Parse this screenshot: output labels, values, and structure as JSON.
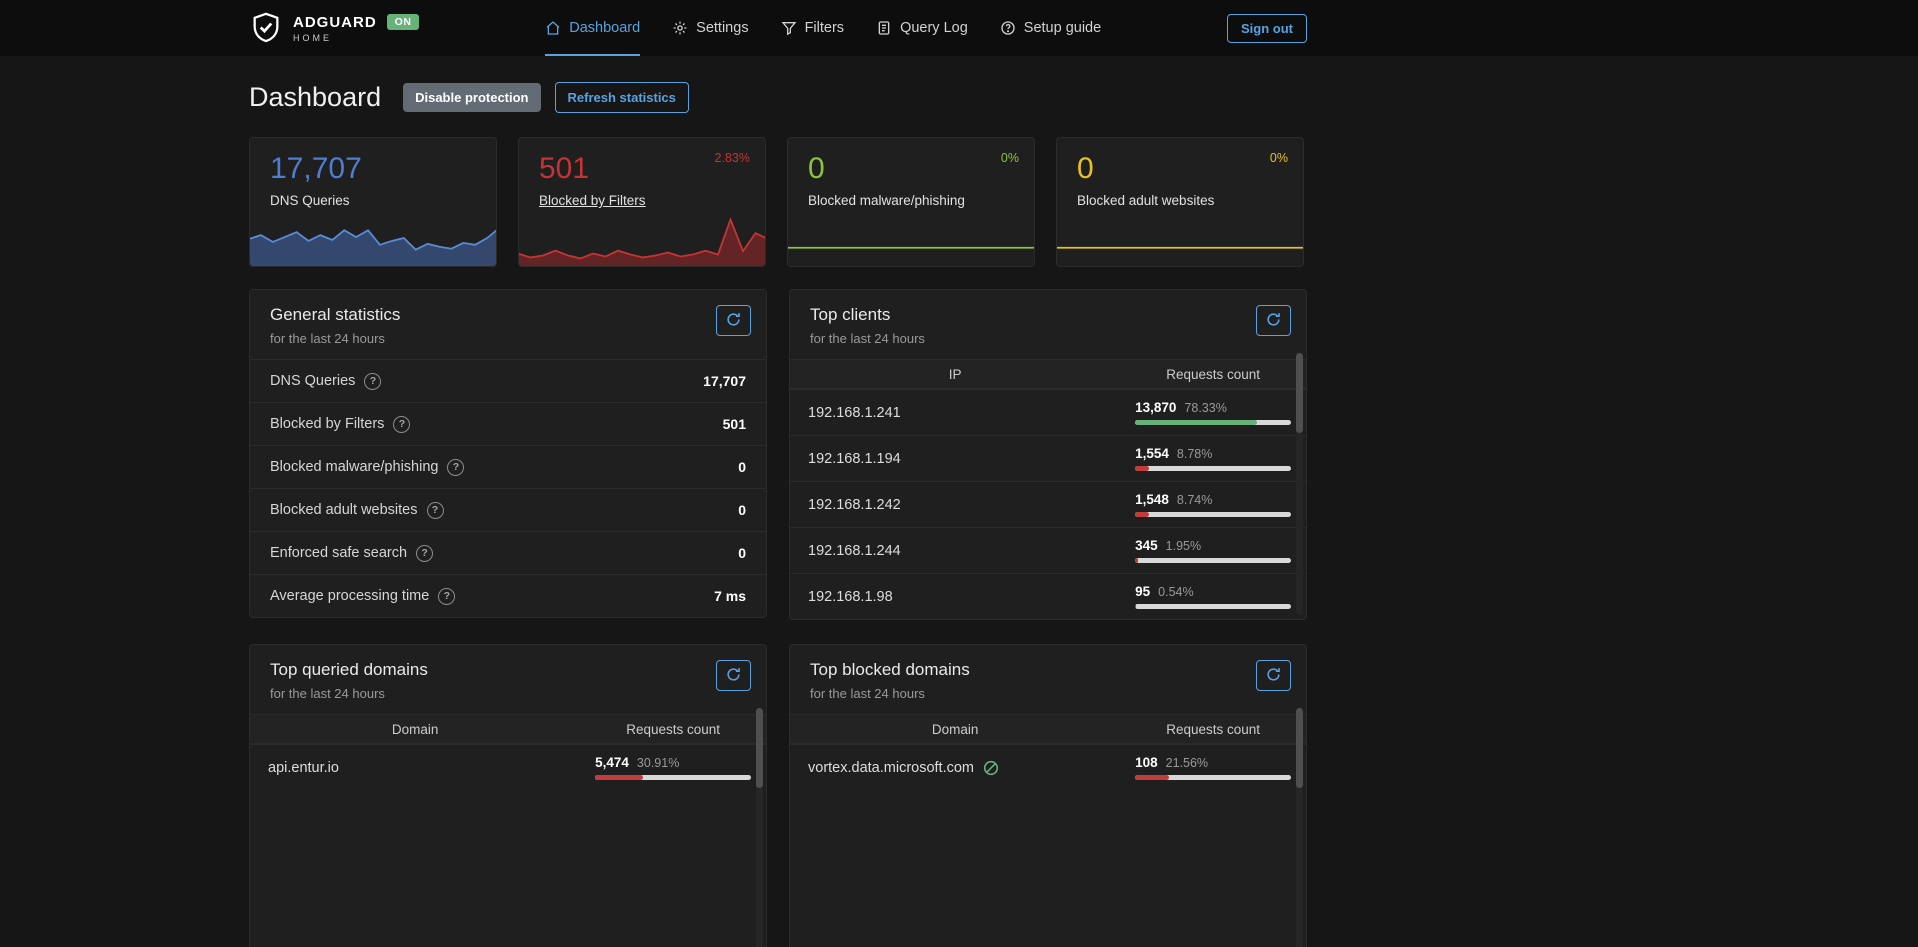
{
  "ui": {
    "question_mark": "?"
  },
  "navbar": {
    "brand": {
      "title": "ADGUARD",
      "subtitle": "HOME",
      "status_badge": "ON"
    },
    "items": [
      {
        "label": "Dashboard"
      },
      {
        "label": "Settings"
      },
      {
        "label": "Filters"
      },
      {
        "label": "Query Log"
      },
      {
        "label": "Setup guide"
      }
    ],
    "signout_label": "Sign out"
  },
  "page": {
    "title": "Dashboard",
    "disable_protection_label": "Disable protection",
    "refresh_statistics_label": "Refresh statistics"
  },
  "stat_cards": [
    {
      "value": "17,707",
      "label": "DNS Queries",
      "percent": "",
      "color": "#4d7fd1",
      "spark": {
        "values": [
          0.5,
          0.58,
          0.44,
          0.54,
          0.64,
          0.46,
          0.58,
          0.48,
          0.68,
          0.54,
          0.68,
          0.38,
          0.46,
          0.52,
          0.28,
          0.4,
          0.34,
          0.3,
          0.42,
          0.38,
          0.52,
          0.72
        ],
        "color": "#5a8bd6",
        "fill": "rgba(67,106,172,0.55)"
      }
    },
    {
      "value": "501",
      "label": "Blocked by Filters",
      "percent": "2.83%",
      "color": "#c53434",
      "spark": {
        "values": [
          0.2,
          0.12,
          0.16,
          0.26,
          0.16,
          0.1,
          0.2,
          0.14,
          0.26,
          0.18,
          0.12,
          0.16,
          0.22,
          0.14,
          0.18,
          0.26,
          0.18,
          0.9,
          0.25,
          0.62,
          0.5
        ],
        "color": "#c53434",
        "fill": "rgba(165,42,42,0.5)"
      }
    },
    {
      "value": "0",
      "label": "Blocked malware/phishing",
      "percent": "0%",
      "color": "#8cc43c",
      "spark": {
        "values": [
          0.32,
          0.32
        ],
        "color": "#8cc43c",
        "fill": "none"
      }
    },
    {
      "value": "0",
      "label": "Blocked adult websites",
      "percent": "0%",
      "color": "#e8c022",
      "spark": {
        "values": [
          0.32,
          0.32
        ],
        "color": "#e8c022",
        "fill": "none"
      }
    }
  ],
  "general_stats": {
    "title": "General statistics",
    "subtitle": "for the last 24 hours",
    "rows": [
      {
        "label": "DNS Queries",
        "value": "17,707"
      },
      {
        "label": "Blocked by Filters",
        "value": "501"
      },
      {
        "label": "Blocked malware/phishing",
        "value": "0"
      },
      {
        "label": "Blocked adult websites",
        "value": "0"
      },
      {
        "label": "Enforced safe search",
        "value": "0"
      },
      {
        "label": "Average processing time",
        "value": "7 ms"
      }
    ]
  },
  "top_clients": {
    "title": "Top clients",
    "subtitle": "for the last 24 hours",
    "col_ip": "IP",
    "col_requests": "Requests count",
    "rows": [
      {
        "ip": "192.168.1.241",
        "count": "13,870",
        "percent": "78.33%",
        "pct": 78.33,
        "bar_color": "#67b279"
      },
      {
        "ip": "192.168.1.194",
        "count": "1,554",
        "percent": "8.78%",
        "pct": 8.78,
        "bar_color": "#c23c3c"
      },
      {
        "ip": "192.168.1.242",
        "count": "1,548",
        "percent": "8.74%",
        "pct": 8.74,
        "bar_color": "#c23c3c"
      },
      {
        "ip": "192.168.1.244",
        "count": "345",
        "percent": "1.95%",
        "pct": 1.95,
        "bar_color": "#c23c3c"
      },
      {
        "ip": "192.168.1.98",
        "count": "95",
        "percent": "0.54%",
        "pct": 0.54,
        "bar_color": "#c23c3c"
      }
    ]
  },
  "top_queried": {
    "title": "Top queried domains",
    "subtitle": "for the last 24 hours",
    "col_domain": "Domain",
    "col_requests": "Requests count",
    "rows": [
      {
        "domain": "api.entur.io",
        "count": "5,474",
        "percent": "30.91%",
        "pct": 30.91,
        "bar_color": "#c23c3c"
      }
    ]
  },
  "top_blocked": {
    "title": "Top blocked domains",
    "subtitle": "for the last 24 hours",
    "col_domain": "Domain",
    "col_requests": "Requests count",
    "rows": [
      {
        "domain": "vortex.data.microsoft.com",
        "count": "108",
        "percent": "21.56%",
        "pct": 21.56,
        "bar_color": "#c23c3c"
      }
    ]
  },
  "colors": {
    "accent_blue": "#58a2e0",
    "badge_green": "#67b279"
  }
}
